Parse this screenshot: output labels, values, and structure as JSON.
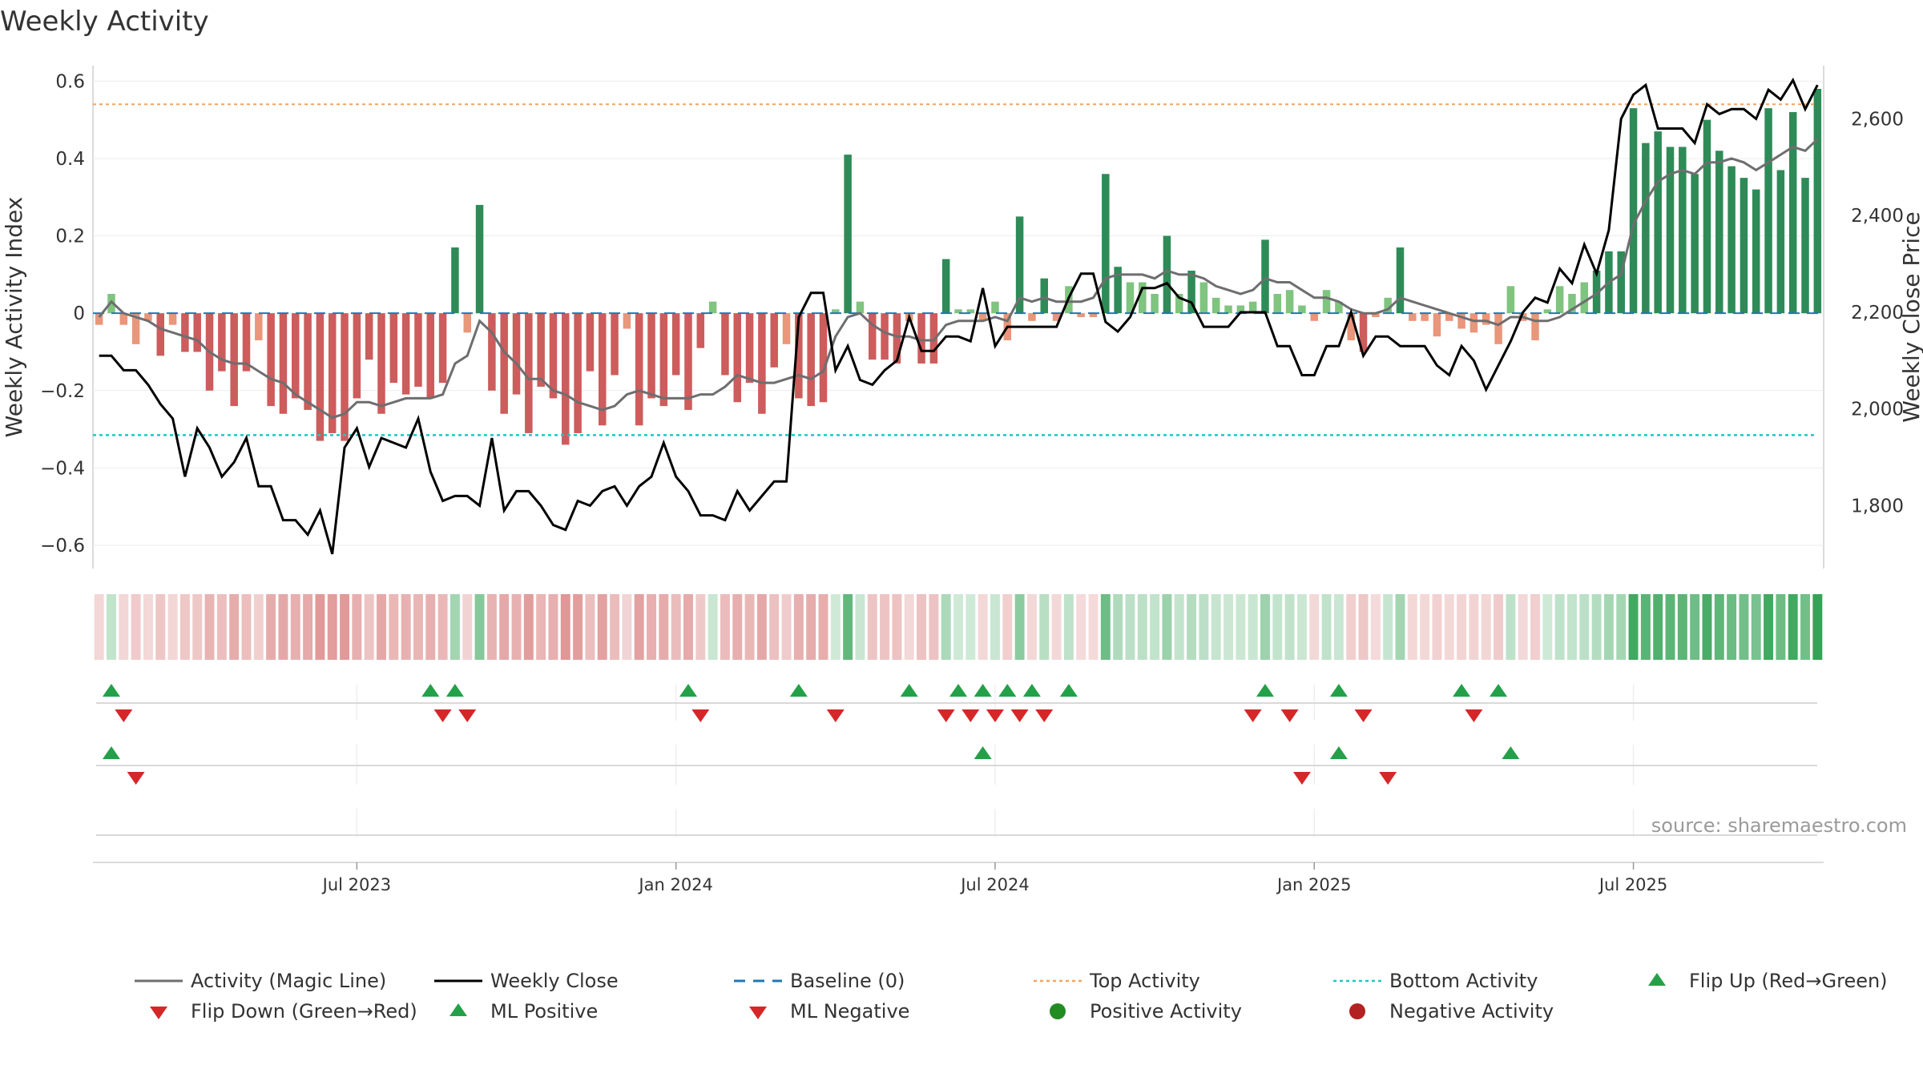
{
  "chart_data": {
    "type": "bar",
    "title": "Weekly Activity",
    "source_text": "source: sharemaestro.com",
    "ylabel_left": "Weekly Activity Index",
    "ylabel_right": "Weekly Close Price",
    "ylim_left": [
      -0.66,
      0.64
    ],
    "ylim_right": [
      1670,
      2710
    ],
    "yticks_left": [
      {
        "v": 0.6,
        "t": "0.6"
      },
      {
        "v": 0.4,
        "t": "0.4"
      },
      {
        "v": 0.2,
        "t": "0.2"
      },
      {
        "v": 0,
        "t": "0"
      },
      {
        "v": -0.2,
        "t": "−0.2"
      },
      {
        "v": -0.4,
        "t": "−0.4"
      },
      {
        "v": -0.6,
        "t": "−0.6"
      }
    ],
    "yticks_right": [
      {
        "v": 2600,
        "t": "2,600"
      },
      {
        "v": 2400,
        "t": "2,400"
      },
      {
        "v": 2200,
        "t": "2,200"
      },
      {
        "v": 2000,
        "t": "2,000"
      },
      {
        "v": 1800,
        "t": "1,800"
      }
    ],
    "xticks": [
      {
        "week": 21,
        "label": "Jul 2023"
      },
      {
        "week": 47,
        "label": "Jan 2024"
      },
      {
        "week": 73,
        "label": "Jul 2024"
      },
      {
        "week": 99,
        "label": "Jan 2025"
      },
      {
        "week": 125,
        "label": "Jul 2025"
      }
    ],
    "top_activity": 0.54,
    "bottom_activity": -0.315,
    "baseline": 0,
    "activity": [
      -0.03,
      0.05,
      -0.03,
      -0.08,
      -0.02,
      -0.11,
      -0.03,
      -0.1,
      -0.1,
      -0.2,
      -0.15,
      -0.24,
      -0.15,
      -0.07,
      -0.24,
      -0.26,
      -0.22,
      -0.25,
      -0.33,
      -0.31,
      -0.33,
      -0.22,
      -0.12,
      -0.26,
      -0.18,
      -0.21,
      -0.19,
      -0.22,
      -0.18,
      0.17,
      -0.05,
      0.28,
      -0.2,
      -0.26,
      -0.21,
      -0.31,
      -0.19,
      -0.22,
      -0.34,
      -0.31,
      -0.15,
      -0.29,
      -0.16,
      -0.04,
      -0.29,
      -0.22,
      -0.24,
      -0.16,
      -0.25,
      -0.09,
      0.03,
      -0.16,
      -0.23,
      -0.18,
      -0.26,
      -0.14,
      -0.08,
      -0.22,
      -0.24,
      -0.23,
      0.01,
      0.41,
      0.03,
      -0.12,
      -0.12,
      -0.13,
      -0.02,
      -0.13,
      -0.13,
      0.14,
      0.01,
      0.01,
      -0.02,
      0.03,
      -0.07,
      0.25,
      -0.02,
      0.09,
      -0.02,
      0.07,
      -0.01,
      -0.01,
      0.36,
      0.12,
      0.08,
      0.08,
      0.05,
      0.2,
      0.05,
      0.11,
      0.08,
      0.04,
      0.02,
      0.02,
      0.03,
      0.19,
      0.05,
      0.06,
      0.02,
      -0.02,
      0.06,
      0.03,
      -0.07,
      -0.1,
      -0.01,
      0.04,
      0.17,
      -0.02,
      -0.02,
      -0.06,
      -0.02,
      -0.04,
      -0.05,
      -0.03,
      -0.08,
      0.07,
      -0.02,
      -0.07,
      0.01,
      0.07,
      0.05,
      0.08,
      0.11,
      0.16,
      0.16,
      0.53,
      0.44,
      0.47,
      0.43,
      0.43,
      0.36,
      0.5,
      0.42,
      0.38,
      0.35,
      0.32,
      0.53,
      0.37,
      0.52,
      0.35,
      0.58
    ],
    "magic_line": [
      -0.01,
      0.03,
      0.0,
      -0.01,
      -0.02,
      -0.04,
      -0.05,
      -0.06,
      -0.07,
      -0.1,
      -0.12,
      -0.13,
      -0.13,
      -0.15,
      -0.17,
      -0.18,
      -0.21,
      -0.23,
      -0.25,
      -0.27,
      -0.26,
      -0.23,
      -0.23,
      -0.24,
      -0.23,
      -0.22,
      -0.22,
      -0.22,
      -0.21,
      -0.13,
      -0.11,
      -0.02,
      -0.05,
      -0.1,
      -0.13,
      -0.17,
      -0.17,
      -0.2,
      -0.21,
      -0.23,
      -0.24,
      -0.25,
      -0.24,
      -0.21,
      -0.2,
      -0.21,
      -0.22,
      -0.22,
      -0.22,
      -0.21,
      -0.21,
      -0.19,
      -0.16,
      -0.17,
      -0.18,
      -0.18,
      -0.17,
      -0.16,
      -0.17,
      -0.15,
      -0.06,
      -0.01,
      0.0,
      -0.03,
      -0.05,
      -0.06,
      -0.06,
      -0.07,
      -0.07,
      -0.03,
      -0.02,
      -0.02,
      -0.02,
      -0.01,
      -0.02,
      0.04,
      0.03,
      0.04,
      0.03,
      0.03,
      0.03,
      0.04,
      0.09,
      0.1,
      0.1,
      0.1,
      0.09,
      0.11,
      0.1,
      0.1,
      0.09,
      0.07,
      0.06,
      0.05,
      0.06,
      0.09,
      0.08,
      0.08,
      0.06,
      0.04,
      0.04,
      0.03,
      0.01,
      0.0,
      0.0,
      0.01,
      0.04,
      0.03,
      0.02,
      0.01,
      0.0,
      -0.01,
      -0.02,
      -0.02,
      -0.03,
      -0.01,
      -0.01,
      -0.02,
      -0.02,
      -0.01,
      0.01,
      0.03,
      0.05,
      0.08,
      0.1,
      0.23,
      0.29,
      0.34,
      0.36,
      0.37,
      0.36,
      0.39,
      0.39,
      0.4,
      0.39,
      0.37,
      0.39,
      0.41,
      0.43,
      0.42,
      0.45
    ],
    "weekly_close": [
      2110,
      2110,
      2080,
      2080,
      2050,
      2010,
      1980,
      1860,
      1960,
      1920,
      1860,
      1890,
      1940,
      1840,
      1840,
      1770,
      1770,
      1740,
      1790,
      1700,
      1920,
      1960,
      1880,
      1940,
      1930,
      1920,
      1980,
      1870,
      1810,
      1820,
      1820,
      1800,
      1940,
      1790,
      1830,
      1830,
      1800,
      1760,
      1750,
      1810,
      1800,
      1830,
      1840,
      1800,
      1840,
      1860,
      1930,
      1860,
      1830,
      1780,
      1780,
      1770,
      1830,
      1790,
      1820,
      1850,
      1850,
      2190,
      2240,
      2240,
      2080,
      2130,
      2060,
      2050,
      2080,
      2100,
      2190,
      2120,
      2120,
      2150,
      2150,
      2140,
      2250,
      2130,
      2170,
      2170,
      2170,
      2170,
      2170,
      2230,
      2280,
      2280,
      2180,
      2160,
      2190,
      2250,
      2250,
      2260,
      2230,
      2220,
      2170,
      2170,
      2170,
      2200,
      2200,
      2200,
      2130,
      2130,
      2070,
      2070,
      2130,
      2130,
      2200,
      2110,
      2150,
      2150,
      2130,
      2130,
      2130,
      2090,
      2070,
      2130,
      2100,
      2040,
      2090,
      2140,
      2200,
      2230,
      2220,
      2290,
      2260,
      2340,
      2280,
      2370,
      2600,
      2650,
      2670,
      2580,
      2580,
      2580,
      2550,
      2630,
      2610,
      2620,
      2620,
      2600,
      2660,
      2640,
      2680,
      2620,
      2670
    ],
    "markers": {
      "flip_up": [
        1,
        27,
        29,
        48,
        57,
        66,
        70,
        72,
        74,
        76,
        79,
        95,
        101,
        111,
        114
      ],
      "flip_down": [
        2,
        28,
        30,
        49,
        60,
        69,
        71,
        73,
        75,
        77,
        94,
        97,
        103,
        112
      ],
      "ml_positive": [
        1,
        72,
        101,
        115
      ],
      "ml_negative": [
        3,
        98,
        105
      ]
    },
    "legend": [
      {
        "label": "Activity (Magic Line)",
        "kind": "line",
        "color": "#6e6e70"
      },
      {
        "label": "Weekly Close",
        "kind": "line",
        "color": "#000000"
      },
      {
        "label": "Baseline (0)",
        "kind": "dash",
        "color": "#1f77b4"
      },
      {
        "label": "Top Activity",
        "kind": "dot",
        "color": "#f4a460"
      },
      {
        "label": "Bottom Activity",
        "kind": "dot",
        "color": "#1cc8c8"
      },
      {
        "label": "Flip Up (Red→Green)",
        "kind": "tri-up",
        "color": "#24a148"
      },
      {
        "label": "Flip Down (Green→Red)",
        "kind": "tri-down",
        "color": "#d62728"
      },
      {
        "label": "ML Positive",
        "kind": "tri-up",
        "color": "#24a148"
      },
      {
        "label": "ML Negative",
        "kind": "tri-down",
        "color": "#d62728"
      },
      {
        "label": "Positive Activity",
        "kind": "circle",
        "color": "#228b22"
      },
      {
        "label": "Negative Activity",
        "kind": "circle",
        "color": "#b22222"
      }
    ],
    "legend_position": "bottom",
    "colors": {
      "pos_dark": "#2e8b57",
      "pos_light": "#7fc47f",
      "neg_dark": "#cd5c5c",
      "neg_light": "#e9967a",
      "magic_line": "#6e6e70",
      "close": "#000000",
      "baseline": "#1f77b4",
      "top": "#f4a460",
      "bottom": "#1cc8c8",
      "up": "#24a148",
      "down": "#d62728"
    }
  }
}
